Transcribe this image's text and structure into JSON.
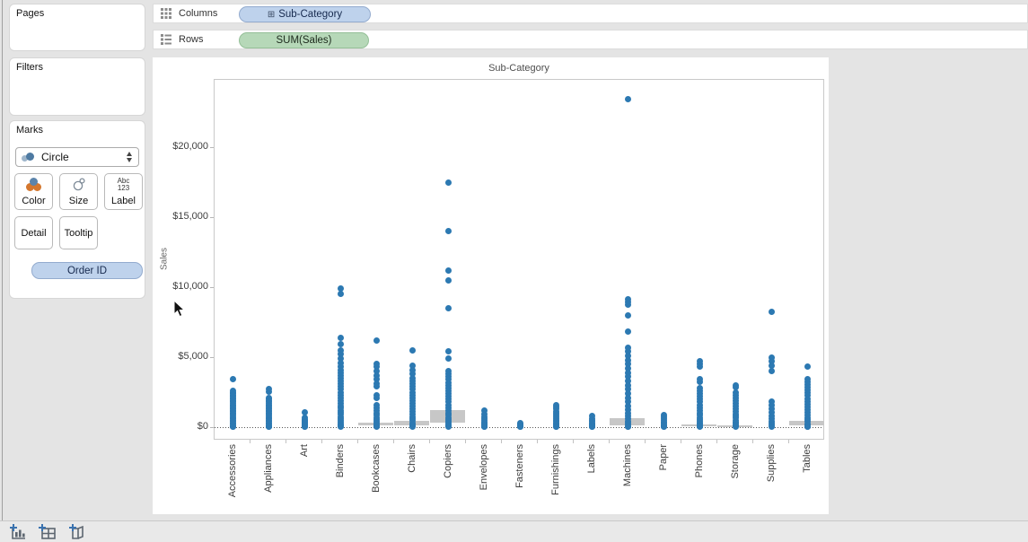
{
  "left_panel": {
    "pages_label": "Pages",
    "filters_label": "Filters",
    "marks": {
      "title": "Marks",
      "mark_type": "Circle",
      "color_label": "Color",
      "size_label": "Size",
      "label_label": "Label",
      "abc123": [
        "Abc",
        "123"
      ],
      "detail_label": "Detail",
      "tooltip_label": "Tooltip",
      "pill": "Order ID"
    }
  },
  "shelves": {
    "columns_label": "Columns",
    "columns_pill": "Sub-Category",
    "columns_pill_prefix": "⊞",
    "rows_label": "Rows",
    "rows_pill": "SUM(Sales)"
  },
  "statusbar": {
    "icons": [
      "new-worksheet",
      "new-dashboard",
      "new-story"
    ]
  },
  "chart_data": {
    "type": "scatter",
    "title": "Sub-Category",
    "ylabel": "Sales",
    "ylim": [
      -900,
      24900
    ],
    "grid": false,
    "zero_reference_line": true,
    "colors": {
      "dot": "#2c79b2",
      "remnant_bar": "#c7c7c7"
    },
    "y_ticks": [
      {
        "value": 0,
        "label": "$0"
      },
      {
        "value": 5000,
        "label": "$5,000"
      },
      {
        "value": 10000,
        "label": "$10,000"
      },
      {
        "value": 15000,
        "label": "$15,000"
      },
      {
        "value": 20000,
        "label": "$20,000"
      }
    ],
    "categories": [
      "Accessories",
      "Appliances",
      "Art",
      "Binders",
      "Bookcases",
      "Chairs",
      "Copiers",
      "Envelopes",
      "Fasteners",
      "Furnishings",
      "Labels",
      "Machines",
      "Paper",
      "Phones",
      "Storage",
      "Supplies",
      "Tables"
    ],
    "series": [
      {
        "name": "Accessories",
        "values": [
          3400,
          2600,
          2500,
          2400,
          2300,
          2200,
          2100,
          2000,
          1900,
          1800,
          1700,
          1600,
          1500,
          1400,
          1300,
          1200,
          1100,
          1000,
          900,
          800,
          700,
          600,
          500,
          400,
          300,
          200,
          120,
          60,
          20
        ]
      },
      {
        "name": "Appliances",
        "values": [
          2700,
          2550,
          2100,
          2000,
          1900,
          1800,
          1700,
          1600,
          1500,
          1400,
          1300,
          1200,
          1100,
          1000,
          900,
          800,
          700,
          600,
          500,
          400,
          300,
          200,
          120,
          60,
          20
        ]
      },
      {
        "name": "Art",
        "values": [
          1050,
          700,
          560,
          480,
          400,
          340,
          280,
          220,
          170,
          120,
          80,
          40,
          15
        ]
      },
      {
        "name": "Binders",
        "values": [
          9900,
          9550,
          6400,
          5900,
          5500,
          5200,
          4900,
          4600,
          4300,
          4100,
          3900,
          3700,
          3500,
          3300,
          3100,
          2900,
          2700,
          2500,
          2300,
          2100,
          1900,
          1700,
          1500,
          1350,
          1200,
          1050,
          900,
          750,
          600,
          480,
          360,
          240,
          140,
          70,
          25
        ]
      },
      {
        "name": "Bookcases",
        "values": [
          6200,
          4500,
          4300,
          4000,
          3700,
          3400,
          3100,
          2900,
          2300,
          2100,
          1600,
          1400,
          1200,
          1000,
          850,
          700,
          560,
          430,
          300,
          180,
          90,
          30
        ]
      },
      {
        "name": "Chairs",
        "values": [
          5450,
          4400,
          4100,
          3800,
          3500,
          3300,
          3100,
          2900,
          2700,
          2500,
          2300,
          2100,
          1900,
          1700,
          1500,
          1300,
          1100,
          900,
          750,
          600,
          450,
          300,
          180,
          90,
          30
        ]
      },
      {
        "name": "Copiers",
        "values": [
          17500,
          14000,
          11200,
          10450,
          8500,
          5400,
          4900,
          4000,
          3800,
          3600,
          3400,
          3200,
          3000,
          2800,
          2600,
          2400,
          2200,
          2000,
          1800,
          1600,
          1400,
          1200,
          1000,
          850,
          700,
          550,
          400,
          280,
          160,
          80,
          25
        ]
      },
      {
        "name": "Envelopes",
        "values": [
          1200,
          950,
          750,
          600,
          480,
          380,
          290,
          210,
          140,
          80,
          35,
          10
        ]
      },
      {
        "name": "Fasteners",
        "values": [
          300,
          220,
          160,
          110,
          70,
          35,
          10
        ]
      },
      {
        "name": "Furnishings",
        "values": [
          1600,
          1450,
          1300,
          1150,
          1000,
          870,
          740,
          620,
          500,
          400,
          300,
          210,
          130,
          60,
          20
        ]
      },
      {
        "name": "Labels",
        "values": [
          790,
          640,
          510,
          400,
          300,
          210,
          140,
          80,
          35,
          10
        ]
      },
      {
        "name": "Machines",
        "values": [
          23450,
          9150,
          8950,
          8750,
          7950,
          6850,
          5650,
          5400,
          5100,
          4800,
          4500,
          4200,
          3900,
          3600,
          3300,
          3000,
          2700,
          2400,
          2100,
          1800,
          1500,
          1250,
          1000,
          800,
          600,
          430,
          280,
          150,
          60,
          15
        ]
      },
      {
        "name": "Paper",
        "values": [
          880,
          720,
          580,
          460,
          350,
          260,
          180,
          110,
          60,
          20
        ]
      },
      {
        "name": "Phones",
        "values": [
          4700,
          4550,
          4350,
          3450,
          3250,
          2800,
          2600,
          2400,
          2200,
          2000,
          1800,
          1600,
          1400,
          1200,
          1000,
          850,
          700,
          550,
          420,
          300,
          200,
          110,
          40
        ]
      },
      {
        "name": "Storage",
        "values": [
          3000,
          2850,
          2500,
          2300,
          2100,
          1900,
          1700,
          1500,
          1300,
          1100,
          950,
          800,
          650,
          500,
          380,
          260,
          160,
          80,
          25
        ]
      },
      {
        "name": "Supplies",
        "values": [
          8250,
          4950,
          4700,
          4400,
          4000,
          1800,
          1550,
          1300,
          1050,
          820,
          620,
          440,
          280,
          150,
          60
        ]
      },
      {
        "name": "Tables",
        "values": [
          4300,
          3450,
          3250,
          3050,
          2850,
          2650,
          2450,
          2250,
          2050,
          1850,
          1650,
          1450,
          1250,
          1050,
          870,
          700,
          540,
          390,
          250,
          140,
          60,
          15
        ]
      }
    ],
    "remnant_bars": [
      {
        "category": "Bookcases",
        "top": 300,
        "bottom": 140
      },
      {
        "category": "Chairs",
        "top": 420,
        "bottom": 100
      },
      {
        "category": "Copiers",
        "top": 1250,
        "bottom": 300
      },
      {
        "category": "Machines",
        "top": 650,
        "bottom": 100
      },
      {
        "category": "Phones",
        "top": 200,
        "bottom": 60
      },
      {
        "category": "Storage",
        "top": 120,
        "bottom": 0
      },
      {
        "category": "Tables",
        "top": 480,
        "bottom": 150
      }
    ]
  }
}
